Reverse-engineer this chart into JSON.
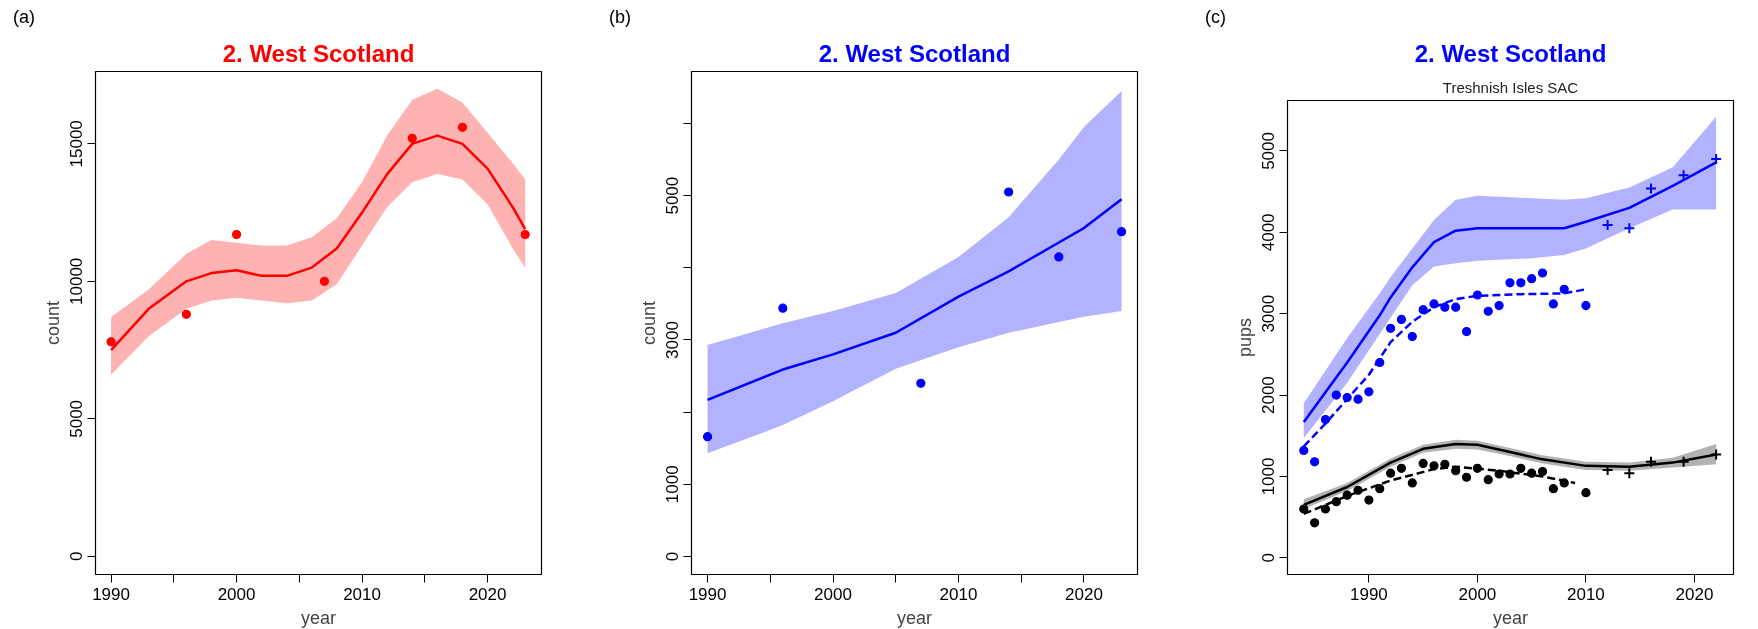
{
  "chart_data": [
    {
      "type": "scatter",
      "title": "2. West Scotland",
      "xlabel": "year",
      "ylabel": "count",
      "annotations": [
        "(a)"
      ],
      "xlim": [
        1988.76,
        2024.3
      ],
      "ylim": [
        -660,
        17630
      ],
      "xticks": [
        1990,
        {
          "value": 1995,
          "label": null
        },
        2000,
        {
          "value": 2005,
          "label": null
        },
        2010,
        {
          "value": 2015,
          "label": null
        },
        2020
      ],
      "yticks": [
        0,
        5000,
        10000,
        15000
      ],
      "series": [
        {
          "color": "#ff0000",
          "marker": "circle",
          "x": [
            1990,
            1996,
            2000,
            2007,
            2014,
            2018,
            2023
          ],
          "values": [
            7800,
            8800,
            11700,
            10000,
            15200,
            15600,
            11700
          ]
        },
        {
          "type": "line",
          "color": "#ff0000",
          "x": [
            1990,
            1993,
            1996,
            1998,
            2000,
            2002,
            2004,
            2006,
            2008,
            2010,
            2012,
            2014,
            2016,
            2018,
            2020,
            2022,
            2023
          ],
          "values": [
            7500,
            9000,
            10000,
            10300,
            10400,
            10200,
            10200,
            10500,
            11200,
            12500,
            13900,
            15000,
            15300,
            15000,
            14100,
            12700,
            11900
          ],
          "lower": [
            6600,
            8000,
            9000,
            9300,
            9400,
            9300,
            9200,
            9300,
            9900,
            11300,
            12700,
            13600,
            13900,
            13700,
            12800,
            11200,
            10500
          ],
          "upper": [
            8700,
            9700,
            11000,
            11500,
            11400,
            11300,
            11300,
            11600,
            12300,
            13600,
            15300,
            16600,
            17000,
            16500,
            15400,
            14300,
            13700
          ]
        }
      ]
    },
    {
      "type": "scatter",
      "title": "2. West Scotland",
      "xlabel": "year",
      "ylabel": "count",
      "annotations": [
        "(b)"
      ],
      "xlim": [
        1988.72,
        2024.27
      ],
      "ylim": [
        -250,
        6720
      ],
      "xticks": [
        1990,
        {
          "value": 1995,
          "label": null
        },
        2000,
        {
          "value": 2005,
          "label": null
        },
        2010,
        {
          "value": 2015,
          "label": null
        },
        2020
      ],
      "yticks": [
        0,
        1000,
        {
          "value": 2000,
          "label": null
        },
        3000,
        {
          "value": 4000,
          "label": null
        },
        5000,
        {
          "value": 6000,
          "label": null
        }
      ],
      "series": [
        {
          "type": "line",
          "color": "#0000ff",
          "x": [
            1990,
            1996,
            2000,
            2005,
            2010,
            2014,
            2018,
            2020,
            2023
          ],
          "values": [
            2170,
            2590,
            2800,
            3100,
            3600,
            3950,
            4350,
            4550,
            4950
          ],
          "lower": [
            1430,
            1820,
            2150,
            2600,
            2900,
            3100,
            3250,
            3320,
            3400
          ],
          "upper": [
            2930,
            3230,
            3400,
            3650,
            4150,
            4700,
            5500,
            5950,
            6450
          ]
        },
        {
          "color": "#0000ff",
          "marker": "circle",
          "x": [
            1990,
            1996,
            2007,
            2014,
            2018,
            2023
          ],
          "values": [
            1660,
            3440,
            2400,
            5050,
            4150,
            4500
          ]
        }
      ]
    },
    {
      "type": "scatter",
      "title": "2. West Scotland",
      "subtitle": "Treshnish Isles SAC",
      "xlabel": "year",
      "ylabel": "pups",
      "annotations": [
        "(c)"
      ],
      "xlim": [
        1982.5,
        2023.6
      ],
      "ylim": [
        -205,
        5620
      ],
      "xticks": [
        1990,
        2000,
        2010,
        2020
      ],
      "yticks": [
        0,
        1000,
        2000,
        3000,
        4000,
        5000
      ],
      "series": [
        {
          "type": "line",
          "color": "#0000ff",
          "x": [
            1984,
            1988,
            1991,
            1992,
            1994,
            1996,
            1998,
            2000,
            2005,
            2008,
            2010,
            2014,
            2018,
            2022
          ],
          "values": [
            1670,
            2400,
            2980,
            3200,
            3570,
            3880,
            4020,
            4050,
            4050,
            4050,
            4130,
            4300,
            4570,
            4860
          ],
          "lower": [
            1470,
            2150,
            2750,
            2950,
            3350,
            3580,
            3620,
            3650,
            3680,
            3720,
            3800,
            4050,
            4280,
            4280
          ],
          "upper": [
            1900,
            2700,
            3250,
            3450,
            3800,
            4150,
            4400,
            4450,
            4420,
            4400,
            4420,
            4550,
            4800,
            5420
          ]
        },
        {
          "type": "line",
          "color": "#000000",
          "x": [
            1984,
            1988,
            1992,
            1995,
            1998,
            2000,
            2003,
            2006,
            2010,
            2014,
            2018,
            2022
          ],
          "values": [
            650,
            870,
            1170,
            1340,
            1400,
            1390,
            1300,
            1210,
            1130,
            1120,
            1170,
            1270
          ],
          "lower": [
            600,
            820,
            1120,
            1290,
            1340,
            1330,
            1250,
            1160,
            1080,
            1070,
            1110,
            1150
          ],
          "upper": [
            720,
            920,
            1220,
            1390,
            1450,
            1440,
            1350,
            1260,
            1180,
            1170,
            1230,
            1400
          ]
        },
        {
          "type": "line",
          "color": "#0000ff",
          "line_style": "dashed",
          "x": [
            1984,
            1986,
            1988,
            1990,
            1992,
            1994,
            1996,
            1998,
            2000,
            2004,
            2008,
            2010
          ],
          "values": [
            1370,
            1650,
            1950,
            2250,
            2650,
            2900,
            3080,
            3180,
            3220,
            3240,
            3250,
            3300
          ]
        },
        {
          "type": "line",
          "color": "#000000",
          "line_style": "dashed",
          "x": [
            1984,
            1988,
            1992,
            1996,
            1998,
            2002,
            2006,
            2009
          ],
          "values": [
            540,
            760,
            950,
            1090,
            1120,
            1070,
            1000,
            920
          ]
        },
        {
          "color": "#0000ff",
          "marker": "circle",
          "x": [
            1984,
            1985,
            1986,
            1987,
            1988,
            1989,
            1990,
            1991,
            1992,
            1993,
            1994,
            1995,
            1996,
            1997,
            1998,
            1999,
            2000,
            2001,
            2002,
            2003,
            2004,
            2005,
            2006,
            2007,
            2008,
            2010
          ],
          "values": [
            1320,
            1180,
            1700,
            2000,
            1970,
            1950,
            2040,
            2400,
            2820,
            2930,
            2720,
            3050,
            3120,
            3080,
            3080,
            2780,
            3230,
            3030,
            3100,
            3380,
            3380,
            3430,
            3500,
            3120,
            3300,
            3100
          ]
        },
        {
          "color": "#0000ff",
          "marker": "cross",
          "x": [
            2012,
            2014,
            2016,
            2019,
            2022
          ],
          "values": [
            4090,
            4050,
            4540,
            4700,
            4900
          ]
        },
        {
          "color": "#000000",
          "marker": "circle",
          "x": [
            1984,
            1985,
            1986,
            1987,
            1988,
            1989,
            1990,
            1991,
            1992,
            1993,
            1994,
            1995,
            1996,
            1997,
            1998,
            1999,
            2000,
            2001,
            2002,
            2003,
            2004,
            2005,
            2006,
            2007,
            2008,
            2010
          ],
          "values": [
            600,
            430,
            600,
            690,
            770,
            830,
            710,
            850,
            1040,
            1100,
            920,
            1160,
            1130,
            1150,
            1070,
            990,
            1100,
            960,
            1030,
            1030,
            1100,
            1040,
            1060,
            850,
            920,
            800
          ]
        },
        {
          "color": "#000000",
          "marker": "cross",
          "x": [
            2012,
            2014,
            2016,
            2019,
            2022
          ],
          "values": [
            1080,
            1040,
            1180,
            1180,
            1270
          ]
        }
      ]
    }
  ]
}
